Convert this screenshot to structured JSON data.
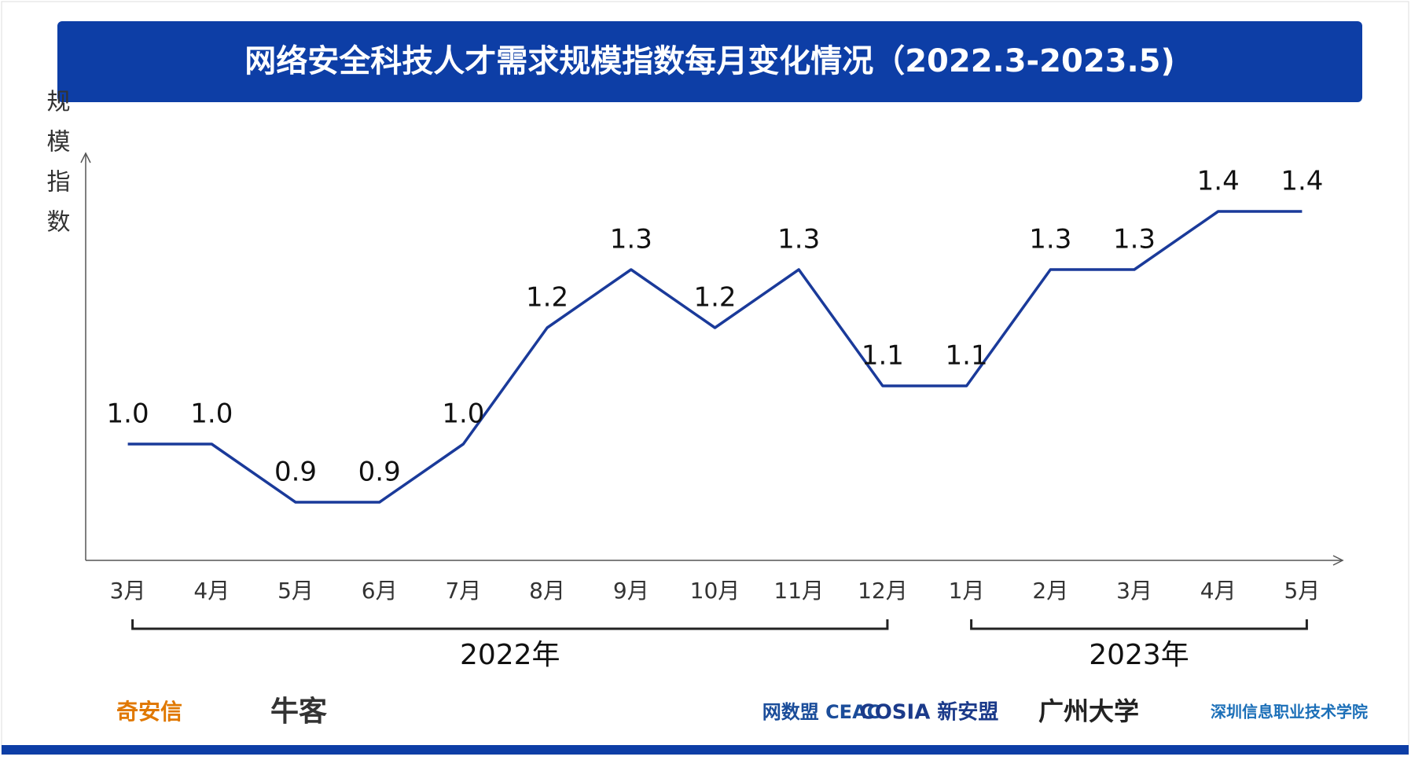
{
  "chart_data": {
    "type": "line",
    "title": "网络安全科技人才需求规模指数每月变化情况（2022.3-2023.5)",
    "y_label": "规模指数",
    "categories": [
      "3月",
      "4月",
      "5月",
      "6月",
      "7月",
      "8月",
      "9月",
      "10月",
      "11月",
      "12月",
      "1月",
      "2月",
      "3月",
      "4月",
      "5月"
    ],
    "series": [
      {
        "name": "规模指数",
        "color": "#1a3a9a",
        "values": [
          1.0,
          1.0,
          0.9,
          0.9,
          1.0,
          1.2,
          1.3,
          1.2,
          1.3,
          1.1,
          1.1,
          1.3,
          1.3,
          1.4,
          1.4
        ],
        "value_labels": [
          "1.0",
          "1.0",
          "0.9",
          "0.9",
          "1.0",
          "1.2",
          "1.3",
          "1.2",
          "1.3",
          "1.1",
          "1.1",
          "1.3",
          "1.3",
          "1.4",
          "1.4"
        ]
      }
    ],
    "groups": [
      {
        "label": "2022年",
        "count": 10
      },
      {
        "label": "2023年",
        "count": 5
      }
    ],
    "ylim": [
      0.8,
      1.5
    ]
  },
  "footer": {
    "logos": [
      "奇安信",
      "牛客",
      "网数盟 CEAC",
      "COSIA 新安盟",
      "广州大学",
      "深圳信息职业技术学院"
    ]
  }
}
